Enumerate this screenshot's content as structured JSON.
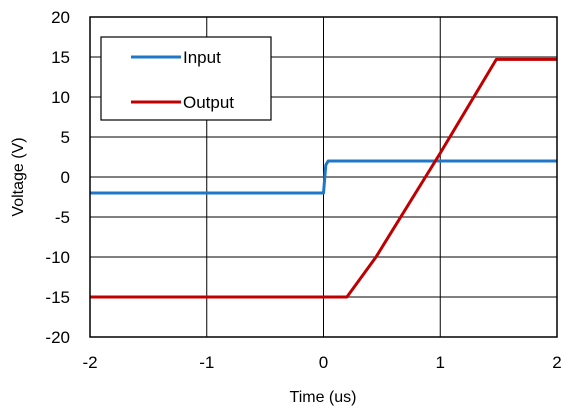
{
  "chart_data": {
    "type": "line",
    "title": "",
    "xlabel": "Time (us)",
    "ylabel": "Voltage (V)",
    "xlim": [
      -2,
      2
    ],
    "ylim": [
      -20,
      20
    ],
    "xticks": [
      -2,
      -1,
      0,
      1,
      2
    ],
    "yticks": [
      -20,
      -15,
      -10,
      -5,
      0,
      5,
      10,
      15,
      20
    ],
    "grid": true,
    "legend_position": "top-left",
    "series": [
      {
        "name": "Input",
        "color": "#1f77c8",
        "x": [
          -2,
          -1,
          0,
          0.02,
          0.04,
          1,
          2
        ],
        "y": [
          -2,
          -2,
          -2,
          1.5,
          2,
          2,
          2
        ]
      },
      {
        "name": "Output",
        "color": "#c00000",
        "x": [
          -2,
          -1,
          0,
          0.2,
          0.45,
          1.0,
          1.48,
          1.6,
          2
        ],
        "y": [
          -15,
          -15,
          -15,
          -15,
          -10,
          3,
          14.7,
          14.7,
          14.7
        ]
      }
    ]
  }
}
